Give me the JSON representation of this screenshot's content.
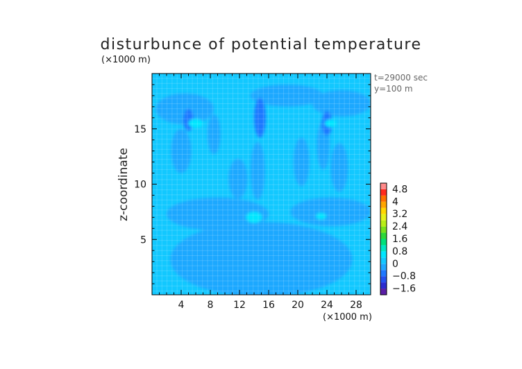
{
  "chart_data": {
    "type": "heatmap",
    "title": "disturbunce of potential temperature",
    "ylabel": "z-coordinate",
    "x_unit": "(×1000 m)",
    "y_unit": "(×1000 m)",
    "xlim": [
      0,
      30
    ],
    "ylim": [
      0,
      20
    ],
    "x_ticks": [
      {
        "value": 4,
        "label": "4"
      },
      {
        "value": 8,
        "label": "8"
      },
      {
        "value": 12,
        "label": "12"
      },
      {
        "value": 16,
        "label": "16"
      },
      {
        "value": 20,
        "label": "20"
      },
      {
        "value": 24,
        "label": "24"
      },
      {
        "value": 28,
        "label": "28"
      }
    ],
    "y_ticks": [
      {
        "value": 5,
        "label": "5"
      },
      {
        "value": 10,
        "label": "10"
      },
      {
        "value": 15,
        "label": "15"
      }
    ],
    "annotations": [
      "t=29000 sec",
      "y=100 m"
    ],
    "colorbar": {
      "levels": [
        -2.0,
        -1.6,
        -1.2,
        -0.8,
        -0.4,
        0,
        0.4,
        0.8,
        1.2,
        1.6,
        2.0,
        2.4,
        2.8,
        3.2,
        3.6,
        4.0,
        4.4,
        4.8,
        5.2
      ],
      "colors": [
        "#5a1ea6",
        "#2a2bd0",
        "#2450f0",
        "#1f78ff",
        "#1ea8ff",
        "#12c8ff",
        "#00e6ff",
        "#00e6c4",
        "#00e07a",
        "#2ed83a",
        "#78e21c",
        "#b8ee18",
        "#e6f018",
        "#ffd700",
        "#ffa500",
        "#ff7000",
        "#ff2a1e",
        "#ff8a8a"
      ],
      "labels": [
        {
          "value": 4.8,
          "label": "4.8"
        },
        {
          "value": 4,
          "label": "4"
        },
        {
          "value": 3.2,
          "label": "3.2"
        },
        {
          "value": 2.4,
          "label": "2.4"
        },
        {
          "value": 1.6,
          "label": "1.6"
        },
        {
          "value": 0.8,
          "label": "0.8"
        },
        {
          "value": 0,
          "label": "0"
        },
        {
          "value": -0.8,
          "label": "−0.8"
        },
        {
          "value": -1.6,
          "label": "−1.6"
        }
      ]
    },
    "field": {
      "background_level": "0 to 0.4",
      "regions": [
        {
          "level": "-0.4 to 0",
          "shape": "ellipse",
          "cx": 15.0,
          "cy": 3.2,
          "rx": 12.5,
          "ry": 3.4
        },
        {
          "level": "-0.4 to 0",
          "shape": "ellipse",
          "cx": 9.0,
          "cy": 7.3,
          "rx": 7.0,
          "ry": 1.5
        },
        {
          "level": "-0.4 to 0",
          "shape": "ellipse",
          "cx": 24.5,
          "cy": 7.5,
          "rx": 5.5,
          "ry": 1.3
        },
        {
          "level": "-0.4 to 0",
          "shape": "ellipse",
          "cx": 4.5,
          "cy": 16.8,
          "rx": 4.0,
          "ry": 1.4
        },
        {
          "level": "-0.4 to 0",
          "shape": "ellipse",
          "cx": 4.0,
          "cy": 13.0,
          "rx": 1.4,
          "ry": 2.0
        },
        {
          "level": "-0.4 to 0",
          "shape": "ellipse",
          "cx": 11.8,
          "cy": 10.5,
          "rx": 1.3,
          "ry": 1.8
        },
        {
          "level": "-0.4 to 0",
          "shape": "ellipse",
          "cx": 14.5,
          "cy": 11.2,
          "rx": 1.0,
          "ry": 2.6
        },
        {
          "level": "-0.4 to 0",
          "shape": "ellipse",
          "cx": 20.5,
          "cy": 12.0,
          "rx": 1.1,
          "ry": 2.2
        },
        {
          "level": "-0.4 to 0",
          "shape": "ellipse",
          "cx": 25.7,
          "cy": 11.5,
          "rx": 1.2,
          "ry": 2.2
        },
        {
          "level": "-0.4 to 0",
          "shape": "ellipse",
          "cx": 23.5,
          "cy": 13.5,
          "rx": 0.9,
          "ry": 2.2
        },
        {
          "level": "-0.4 to 0",
          "shape": "ellipse",
          "cx": 8.5,
          "cy": 14.5,
          "rx": 0.9,
          "ry": 1.8
        },
        {
          "level": "-0.4 to 0",
          "shape": "ellipse",
          "cx": 26.0,
          "cy": 17.3,
          "rx": 4.0,
          "ry": 1.2
        },
        {
          "level": "-0.4 to 0",
          "shape": "ellipse",
          "cx": 18.5,
          "cy": 18.0,
          "rx": 5.0,
          "ry": 1.0
        },
        {
          "level": "-0.8 to -0.4",
          "shape": "ellipse",
          "cx": 14.8,
          "cy": 16.0,
          "rx": 0.8,
          "ry": 1.8
        },
        {
          "level": "-0.8 to -0.4",
          "shape": "ellipse",
          "cx": 5.0,
          "cy": 15.8,
          "rx": 0.7,
          "ry": 1.0
        },
        {
          "level": "-0.8 to -0.4",
          "shape": "ellipse",
          "cx": 24.0,
          "cy": 15.5,
          "rx": 0.7,
          "ry": 1.1
        },
        {
          "level": "0.4 to 0.8",
          "shape": "ellipse",
          "cx": 14.0,
          "cy": 7.0,
          "rx": 1.1,
          "ry": 0.5
        },
        {
          "level": "0.4 to 0.8",
          "shape": "ellipse",
          "cx": 23.2,
          "cy": 7.1,
          "rx": 0.7,
          "ry": 0.3
        },
        {
          "level": "0.4 to 0.8",
          "shape": "ellipse",
          "cx": 6.0,
          "cy": 15.5,
          "rx": 1.0,
          "ry": 0.4
        },
        {
          "level": "0.4 to 0.8",
          "shape": "ellipse",
          "cx": 24.5,
          "cy": 15.5,
          "rx": 0.8,
          "ry": 0.35
        }
      ]
    }
  },
  "colors": {
    "level_-0.4_to_0": "#1ea8ff",
    "level_0_to_0.4": "#12c8ff",
    "level_-0.8_to_-0.4": "#1f78ff",
    "level_0.4_to_0.8": "#00e6ff",
    "frame": "#000000"
  }
}
